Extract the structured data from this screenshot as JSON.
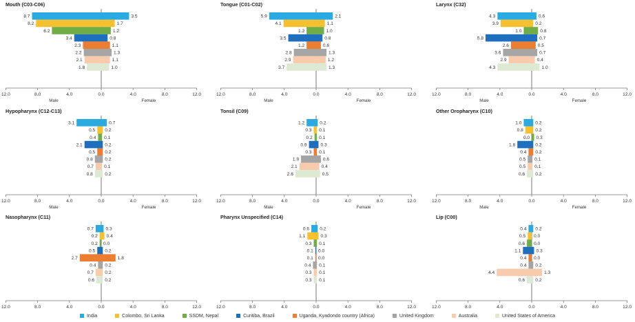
{
  "series_names": [
    "India",
    "Colombo, Sri Lanka",
    "SSDM, Nepal",
    "Curitiba, Brazil",
    "Uganda, Kyadondo country (Africa)",
    "United Kingdom",
    "Australia",
    "United States of America"
  ],
  "colors": [
    "#29abe2",
    "#f7c02e",
    "#70ad47",
    "#1f6fbf",
    "#ed7d31",
    "#a5a5a5",
    "#f8cbad",
    "#dde9d3"
  ],
  "tick_labels": [
    "12.0",
    "8.0",
    "4.0",
    "0.0",
    "4.0",
    "8.0",
    "12.0"
  ],
  "axis": {
    "xlabel_left": "Male",
    "xlabel_right": "Female"
  },
  "chart_data": [
    {
      "type": "bar",
      "title": "Mouth (C03-C06)",
      "xlim": [
        -12,
        12
      ],
      "male": [
        8.7,
        8.2,
        6.2,
        3.4,
        2.3,
        2.2,
        2.1,
        1.8
      ],
      "female": [
        3.5,
        1.7,
        1.2,
        0.8,
        1.1,
        1.3,
        1.1,
        1.0
      ],
      "male_labels": [
        "8.7",
        "8.2",
        "6.2",
        "3.4",
        "2.3",
        "2.2",
        "2.1",
        "1.8"
      ],
      "female_labels": [
        "3.5",
        "1.7",
        "1.2",
        "0.8",
        "1.1",
        "1.3",
        "1.1",
        "1.0"
      ]
    },
    {
      "type": "bar",
      "title": "Tongue (C01-C02)",
      "xlim": [
        -12,
        12
      ],
      "male": [
        5.9,
        4.1,
        1.2,
        3.5,
        1.2,
        2.8,
        2.9,
        3.7
      ],
      "female": [
        2.1,
        1.1,
        1.0,
        0.8,
        0.6,
        1.3,
        1.2,
        1.3
      ],
      "male_labels": [
        "5.9",
        "4.1",
        "1.2",
        "3.5",
        "1.2",
        "2.8",
        "2.9",
        "3.7"
      ],
      "female_labels": [
        "2.1",
        "1.1",
        "1.0",
        "0.8",
        "0.6",
        "1.3",
        "1.2",
        "1.3"
      ]
    },
    {
      "type": "bar",
      "title": "Larynx (C32)",
      "xlim": [
        -12,
        12
      ],
      "male": [
        4.3,
        3.9,
        1.0,
        5.8,
        2.6,
        3.6,
        2.9,
        4.3
      ],
      "female": [
        0.6,
        0.2,
        0.8,
        0.7,
        0.5,
        0.7,
        0.4,
        1.0
      ],
      "male_labels": [
        "4.3",
        "3.9",
        "1.0",
        "5.8",
        "2.6",
        "3.6",
        "2.9",
        "4.3"
      ],
      "female_labels": [
        "0.6",
        "0.2",
        "0.8",
        "0.7",
        "0.5",
        "0.7",
        "0.4",
        "1.0"
      ]
    },
    {
      "type": "bar",
      "title": "Hypopharynx (C12-C13)",
      "xlim": [
        -12,
        12
      ],
      "male": [
        3.1,
        0.5,
        0.4,
        2.1,
        0.5,
        0.8,
        0.7,
        0.8
      ],
      "female": [
        0.7,
        0.2,
        0.1,
        0.2,
        0.2,
        0.2,
        0.1,
        0.2
      ],
      "male_labels": [
        "3.1",
        "0.5",
        "0.4",
        "2.1",
        "0.5",
        "0.8",
        "0.7",
        "0.8"
      ],
      "female_labels": [
        "0.7",
        "0.2",
        "0.1",
        "0.2",
        "0.2",
        "0.2",
        "0.1",
        "0.2"
      ]
    },
    {
      "type": "bar",
      "title": "Tonsil (C09)",
      "xlim": [
        -12,
        12
      ],
      "male": [
        1.2,
        0.3,
        0.2,
        0.9,
        0.3,
        1.9,
        2.1,
        2.6
      ],
      "female": [
        0.2,
        0.1,
        0.1,
        0.3,
        0.1,
        0.6,
        0.4,
        0.5
      ],
      "male_labels": [
        "1.2",
        "0.3",
        "0.2",
        "0.9",
        "0.3",
        "1.9",
        "2.1",
        "2.6"
      ],
      "female_labels": [
        "0.2",
        "0.1",
        "0.1",
        "0.3",
        "0.1",
        "0.6",
        "0.4",
        "0.5"
      ]
    },
    {
      "type": "bar",
      "title": "Other Oropharynx (C10)",
      "xlim": [
        -12,
        12
      ],
      "male": [
        1.0,
        0.8,
        0.0,
        1.8,
        0.4,
        0.5,
        0.5,
        0.6
      ],
      "female": [
        0.2,
        0.2,
        0.3,
        0.2,
        0.2,
        0.1,
        0.1,
        0.2
      ],
      "male_labels": [
        "1.0",
        "0.8",
        "0.0",
        "1.8",
        "0.4",
        "0.5",
        "0.5",
        "0.6"
      ],
      "female_labels": [
        "0.2",
        "0.2",
        "0.3",
        "0.2",
        "0.2",
        "0.1",
        "0.1",
        "0.2"
      ]
    },
    {
      "type": "bar",
      "title": "Nasopharynx (C11)",
      "xlim": [
        -12,
        12
      ],
      "male": [
        0.7,
        0.2,
        0.2,
        0.5,
        2.7,
        0.4,
        0.7,
        0.6
      ],
      "female": [
        0.3,
        0.4,
        0.0,
        0.2,
        1.8,
        0.2,
        0.2,
        0.2
      ],
      "male_labels": [
        "0.7",
        "0.2",
        "0.2",
        "0.5",
        "2.7",
        "0.4",
        "0.7",
        "0.6"
      ],
      "female_labels": [
        "0.3",
        "0.4",
        "0.0",
        "0.2",
        "1.8",
        "0.2",
        "0.2",
        "0.2"
      ]
    },
    {
      "type": "bar",
      "title": "Pharynx Unspecified (C14)",
      "xlim": [
        -12,
        12
      ],
      "male": [
        0.6,
        1.1,
        0.3,
        0.1,
        0.1,
        0.4,
        0.3,
        0.3
      ],
      "female": [
        0.2,
        0.3,
        0.1,
        0.0,
        0.0,
        0.1,
        0.1,
        0.1
      ],
      "male_labels": [
        "0.6",
        "1.1",
        "0.3",
        "0.1",
        "0.1",
        "0.4",
        "0.3",
        "0.3"
      ],
      "female_labels": [
        "0.2",
        "0.3",
        "0.1",
        "0.0",
        "0.0",
        "0.1",
        "0.1",
        "0.1"
      ]
    },
    {
      "type": "bar",
      "title": "Lip (C00)",
      "xlim": [
        -12,
        12
      ],
      "male": [
        0.4,
        0.5,
        0.6,
        1.1,
        0.4,
        0.4,
        4.4,
        0.6
      ],
      "female": [
        0.2,
        0.0,
        0.0,
        0.3,
        0.0,
        0.2,
        1.3,
        0.2
      ],
      "male_labels": [
        "0.4",
        "0.5",
        "0.6",
        "1.1",
        "0.4",
        "0.4",
        "4.4",
        "0.6"
      ],
      "female_labels": [
        "0.2",
        "0.0",
        "0.0",
        "0.3",
        "0.0",
        "0.2",
        "1.3",
        "0.2"
      ]
    }
  ]
}
